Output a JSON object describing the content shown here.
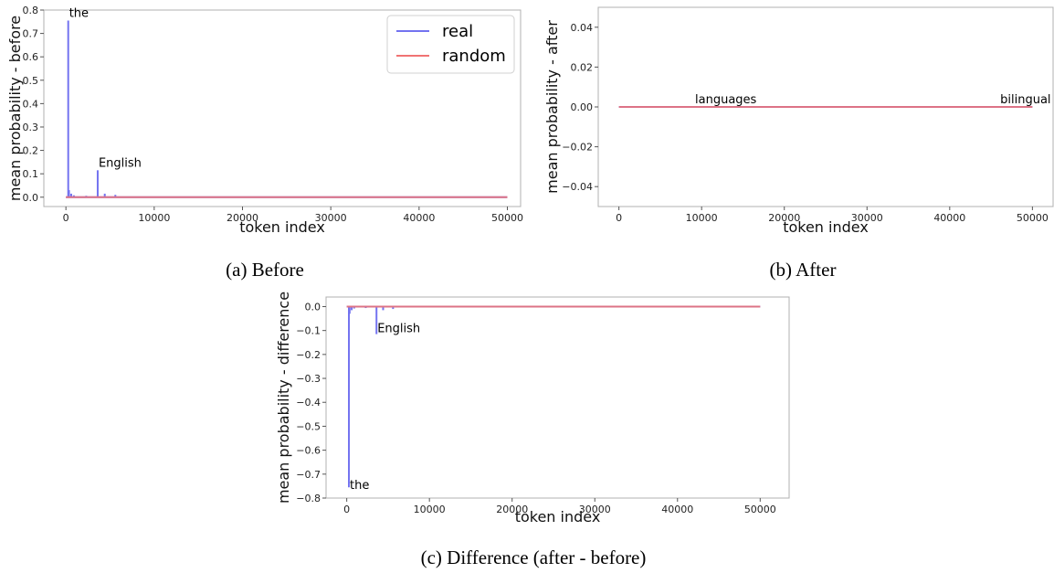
{
  "chart_data": [
    {
      "id": "a",
      "type": "line",
      "caption": "(a) Before",
      "xlabel": "token index",
      "ylabel": "mean probability - before",
      "xlim": [
        -2500,
        51500
      ],
      "ylim": [
        -0.04,
        0.8
      ],
      "xticks": [
        0,
        10000,
        20000,
        30000,
        40000,
        50000
      ],
      "yticks": [
        0.0,
        0.1,
        0.2,
        0.3,
        0.4,
        0.5,
        0.6,
        0.7,
        0.8
      ],
      "yticklabels": [
        "0.0",
        "0.1",
        "0.2",
        "0.3",
        "0.4",
        "0.5",
        "0.6",
        "0.7",
        "0.8"
      ],
      "legend": {
        "position": "top-right",
        "entries": [
          "real",
          "random"
        ]
      },
      "series": [
        {
          "name": "real",
          "color": "#7373f0",
          "spikes": [
            [
              262,
              0.755
            ],
            [
              350,
              0.03
            ],
            [
              600,
              0.015
            ],
            [
              900,
              0.008
            ],
            [
              2300,
              0.006
            ],
            [
              3600,
              0.115
            ],
            [
              4400,
              0.015
            ],
            [
              5600,
              0.01
            ]
          ]
        },
        {
          "name": "random",
          "color": "#f07373",
          "baseline": 0.0
        }
      ],
      "annotations": [
        {
          "text": "the",
          "x": 262,
          "y": 0.755
        },
        {
          "text": "English",
          "x": 3600,
          "y": 0.115
        }
      ]
    },
    {
      "id": "b",
      "type": "line",
      "caption": "(b) After",
      "xlabel": "token index",
      "ylabel": "mean probability - after",
      "xlim": [
        -2500,
        52500
      ],
      "ylim": [
        -0.05,
        0.05
      ],
      "xticks": [
        0,
        10000,
        20000,
        30000,
        40000,
        50000
      ],
      "yticks": [
        -0.04,
        -0.02,
        0.0,
        0.02,
        0.04
      ],
      "yticklabels": [
        "−0.04",
        "−0.02",
        "0.00",
        "0.02",
        "0.04"
      ],
      "series": [
        {
          "name": "real",
          "color": "#7373f0",
          "spikes": []
        },
        {
          "name": "random",
          "color": "#f07373",
          "baseline": 0.0
        }
      ],
      "annotations": [
        {
          "text": "languages",
          "x": 9100,
          "y": 0.0
        },
        {
          "text": "bilingual",
          "x": 46000,
          "y": 0.0
        }
      ]
    },
    {
      "id": "c",
      "type": "line",
      "caption": "(c) Difference (after - before)",
      "xlabel": "token index",
      "ylabel": "mean probability - difference",
      "xlim": [
        -2500,
        53500
      ],
      "ylim": [
        -0.8,
        0.04
      ],
      "xticks": [
        0,
        10000,
        20000,
        30000,
        40000,
        50000
      ],
      "yticks": [
        0.0,
        -0.1,
        -0.2,
        -0.3,
        -0.4,
        -0.5,
        -0.6,
        -0.7,
        -0.8
      ],
      "yticklabels": [
        "0.0",
        "−0.1",
        "−0.2",
        "−0.3",
        "−0.4",
        "−0.5",
        "−0.6",
        "−0.7",
        "−0.8"
      ],
      "series": [
        {
          "name": "real",
          "color": "#7373f0",
          "spikes": [
            [
              262,
              -0.755
            ],
            [
              350,
              -0.03
            ],
            [
              600,
              -0.015
            ],
            [
              900,
              -0.008
            ],
            [
              2300,
              -0.006
            ],
            [
              3600,
              -0.115
            ],
            [
              4400,
              -0.015
            ],
            [
              5600,
              -0.01
            ]
          ]
        },
        {
          "name": "random",
          "color": "#f07373",
          "baseline": 0.0
        }
      ],
      "annotations": [
        {
          "text": "English",
          "x": 3600,
          "y": -0.115
        },
        {
          "text": "the",
          "x": 262,
          "y": -0.755
        }
      ]
    }
  ]
}
